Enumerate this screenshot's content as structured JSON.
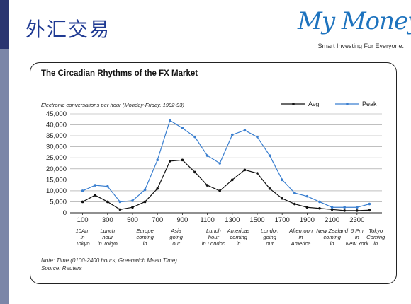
{
  "page": {
    "title": "外汇交易",
    "logo_text": "My Money",
    "logo_tagline": "Smart Investing For Everyone."
  },
  "colors": {
    "avg": "#111111",
    "peak": "#3a7fd0",
    "title": "#1f3a93",
    "logo": "#1e73be"
  },
  "chart_data": {
    "type": "line",
    "title": "The Circadian Rhythms of the FX Market",
    "ylabel": "Electronic conversations per hour (Monday-Friday, 1992-93)",
    "xlabel": "",
    "ylim": [
      0,
      45000
    ],
    "yticks": [
      "45,000",
      "40,000",
      "35,000",
      "30,000",
      "25,000",
      "20,000",
      "15,000",
      "10,000",
      "5,000",
      "0"
    ],
    "xticks": [
      "100",
      "300",
      "500",
      "700",
      "900",
      "1100",
      "1300",
      "1500",
      "1700",
      "1900",
      "2100",
      "2300"
    ],
    "legend_position": "top-right",
    "x": [
      100,
      200,
      300,
      400,
      500,
      600,
      700,
      800,
      900,
      1000,
      1100,
      1200,
      1300,
      1400,
      1500,
      1600,
      1700,
      1800,
      1900,
      2000,
      2100,
      2200,
      2300,
      2400
    ],
    "series": [
      {
        "name": "Avg",
        "values": [
          5000,
          8000,
          5000,
          1500,
          2500,
          5000,
          11000,
          23500,
          24000,
          18500,
          12500,
          10000,
          15000,
          19500,
          18000,
          11000,
          6500,
          4000,
          2500,
          2000,
          1500,
          1000,
          1000,
          1200
        ]
      },
      {
        "name": "Peak",
        "values": [
          10000,
          12500,
          12000,
          5000,
          5500,
          10500,
          24000,
          42000,
          38500,
          34500,
          26000,
          22500,
          35500,
          37500,
          34500,
          26000,
          15000,
          9000,
          7500,
          5000,
          2500,
          2500,
          2500,
          4000
        ]
      }
    ],
    "annotations": [
      {
        "x": 100,
        "lines": [
          "10Am",
          "in",
          "Tokyo"
        ]
      },
      {
        "x": 300,
        "lines": [
          "Lunch",
          "hour",
          "in Tokyo"
        ]
      },
      {
        "x": 600,
        "lines": [
          "Europe",
          "coming",
          "in"
        ]
      },
      {
        "x": 850,
        "lines": [
          "Asia",
          "going",
          "out"
        ]
      },
      {
        "x": 1150,
        "lines": [
          "Lunch",
          "hour",
          "in London"
        ]
      },
      {
        "x": 1350,
        "lines": [
          "Americas",
          "coming",
          "in"
        ]
      },
      {
        "x": 1600,
        "lines": [
          "London",
          "going",
          "out"
        ]
      },
      {
        "x": 1850,
        "lines": [
          "Afternoon",
          "in",
          "America"
        ]
      },
      {
        "x": 2100,
        "lines": [
          "New Zealand",
          "coming",
          "in"
        ]
      },
      {
        "x": 2300,
        "lines": [
          "6 Pm",
          "in",
          "New York"
        ]
      },
      {
        "x": 2450,
        "lines": [
          "Tokyo",
          "Coming",
          "in"
        ]
      }
    ],
    "notes": [
      "Note: Time (0100-2400 hours, Greenwich Mean Time)",
      "Source: Reuters"
    ]
  }
}
